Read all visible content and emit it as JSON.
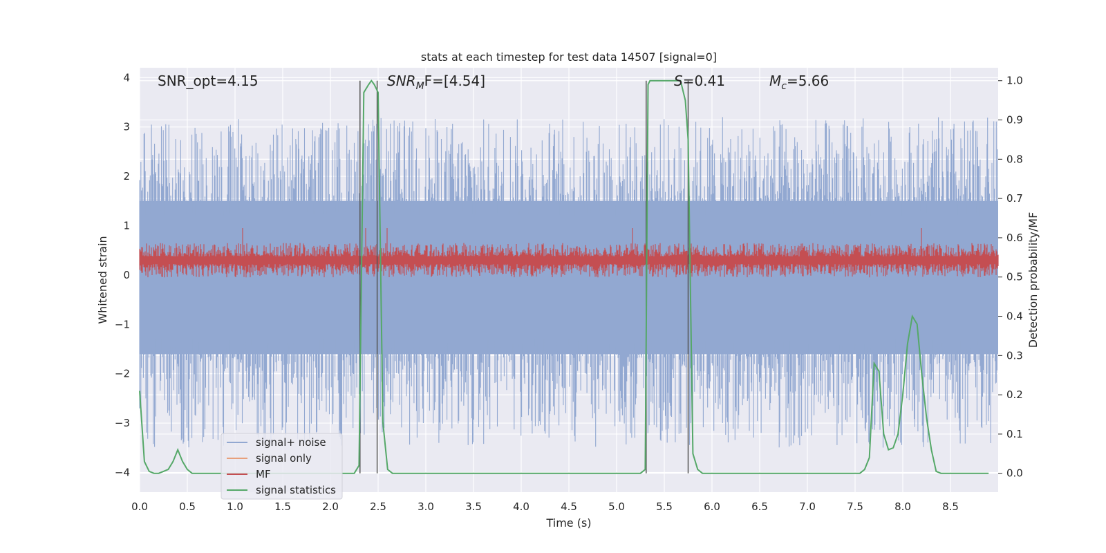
{
  "chart_data": {
    "type": "line",
    "title": "stats at each timestep for test data 14507 [signal=0]",
    "xlabel": "Time (s)",
    "ylabel_left": "Whitened strain",
    "ylabel_right": "Detection probability/MF",
    "xlim": [
      0,
      9.0
    ],
    "ylim_left": [
      -4.4,
      4.2
    ],
    "ylim_right": [
      -0.048,
      1.033
    ],
    "x_ticks": [
      "0.0",
      "0.5",
      "1.0",
      "1.5",
      "2.0",
      "2.5",
      "3.0",
      "3.5",
      "4.0",
      "4.5",
      "5.0",
      "5.5",
      "6.0",
      "6.5",
      "7.0",
      "7.5",
      "8.0",
      "8.5"
    ],
    "y_ticks_left": [
      "−4",
      "−3",
      "−2",
      "−1",
      "0",
      "1",
      "2",
      "3",
      "4"
    ],
    "y_ticks_right": [
      "0.0",
      "0.1",
      "0.2",
      "0.3",
      "0.4",
      "0.5",
      "0.6",
      "0.7",
      "0.8",
      "0.9",
      "1.0"
    ],
    "grid": true,
    "legend_position": "lower-left",
    "annotations": {
      "snr_opt": "SNR_opt=4.15",
      "snr_mf_name": "SNR",
      "snr_mf_sub": "M",
      "snr_mf_rest": "F=[4.54]",
      "s_name": "S",
      "s_rest": "=0.41",
      "mc_name": "M",
      "mc_sub": "c",
      "mc_rest": "=5.66"
    },
    "vertical_lines_x": [
      2.31,
      2.49,
      5.31,
      5.75
    ],
    "series": [
      {
        "name": "signal+ noise",
        "color": "#92a8d1",
        "axis": "left",
        "band": {
          "dense_low": -1.6,
          "dense_high": 1.5,
          "spike_min": -3.5,
          "spike_max": 3.2
        }
      },
      {
        "name": "signal only",
        "color": "#e8a07c",
        "axis": "left",
        "values": []
      },
      {
        "name": "MF",
        "color": "#c44e52",
        "axis": "left",
        "band": {
          "center": 0.3,
          "low": -0.05,
          "high": 0.65,
          "spike_max": 0.95
        }
      },
      {
        "name": "signal statistics",
        "color": "#55a868",
        "axis": "right",
        "x": [
          0.0,
          0.05,
          0.1,
          0.15,
          0.2,
          0.25,
          0.3,
          0.35,
          0.4,
          0.45,
          0.5,
          0.55,
          0.6,
          1.0,
          1.5,
          2.0,
          2.25,
          2.3,
          2.35,
          2.4,
          2.43,
          2.46,
          2.5,
          2.55,
          2.6,
          2.65,
          2.7,
          3.0,
          4.0,
          5.0,
          5.25,
          5.3,
          5.33,
          5.35,
          5.4,
          5.5,
          5.6,
          5.67,
          5.72,
          5.75,
          5.8,
          5.85,
          5.9,
          6.5,
          7.0,
          7.5,
          7.55,
          7.6,
          7.65,
          7.7,
          7.75,
          7.8,
          7.85,
          7.9,
          7.95,
          8.0,
          8.05,
          8.1,
          8.15,
          8.2,
          8.25,
          8.3,
          8.35,
          8.4,
          8.45,
          8.5,
          8.6,
          8.9
        ],
        "values": [
          0.21,
          0.03,
          0.005,
          0.0,
          0.0,
          0.005,
          0.01,
          0.03,
          0.06,
          0.03,
          0.01,
          0.0,
          0.0,
          0.0,
          0.0,
          0.0,
          0.0,
          0.02,
          0.97,
          0.99,
          1.0,
          0.99,
          0.97,
          0.13,
          0.01,
          0.0,
          0.0,
          0.0,
          0.0,
          0.0,
          0.0,
          0.01,
          0.99,
          1.0,
          1.0,
          1.0,
          1.0,
          1.0,
          0.95,
          0.85,
          0.05,
          0.01,
          0.0,
          0.0,
          0.0,
          0.0,
          0.0,
          0.01,
          0.04,
          0.28,
          0.26,
          0.1,
          0.06,
          0.065,
          0.1,
          0.2,
          0.33,
          0.4,
          0.38,
          0.25,
          0.14,
          0.06,
          0.005,
          0.0,
          0.0,
          0.0,
          0.0,
          0.0
        ]
      }
    ]
  }
}
